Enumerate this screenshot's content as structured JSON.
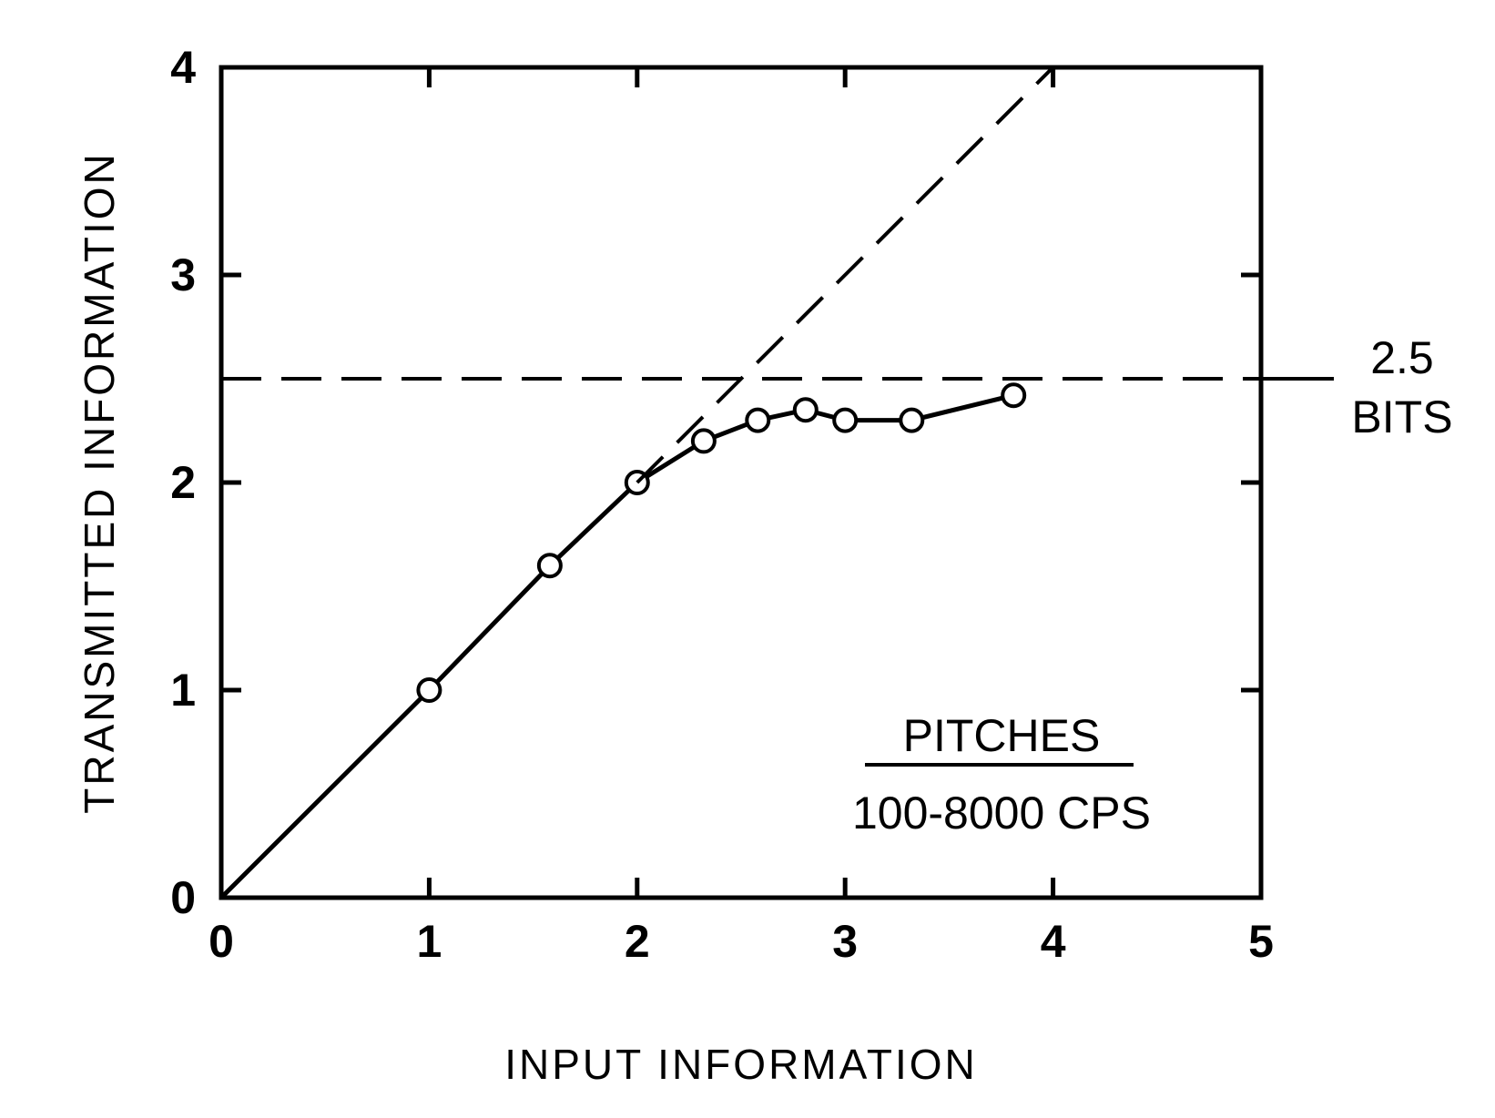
{
  "chart_data": {
    "type": "line",
    "title": "",
    "xlabel": "INPUT INFORMATION",
    "ylabel": "TRANSMITTED INFORMATION",
    "xlim": [
      0,
      5
    ],
    "ylim": [
      0,
      4
    ],
    "x_ticks": [
      0,
      1,
      2,
      3,
      4,
      5
    ],
    "y_ticks": [
      0,
      1,
      2,
      3,
      4
    ],
    "x_tick_labels": [
      "0",
      "1",
      "2",
      "3",
      "4",
      "5"
    ],
    "y_tick_labels": [
      "0",
      "1",
      "2",
      "3",
      "4"
    ],
    "grid": false,
    "series": [
      {
        "x": [
          0,
          1.0,
          1.58,
          2.0,
          2.32,
          2.58,
          2.81,
          3.0,
          3.32,
          3.81
        ],
        "y": [
          0,
          1.0,
          1.6,
          2.0,
          2.2,
          2.3,
          2.35,
          2.3,
          2.3,
          2.42
        ],
        "style": "solid",
        "markers": "open-circle",
        "color": "#000000"
      },
      {
        "x": [
          2.0,
          4.0
        ],
        "y": [
          2.0,
          4.0
        ],
        "style": "dashed",
        "color": "#000000"
      }
    ],
    "reference_lines": [
      {
        "orientation": "horizontal",
        "y": 2.5,
        "style": "dashed",
        "label_value": "2.5",
        "label_unit": "BITS"
      }
    ],
    "annotations": {
      "title_text": "PITCHES",
      "subtitle_text": "100-8000 CPS"
    }
  }
}
